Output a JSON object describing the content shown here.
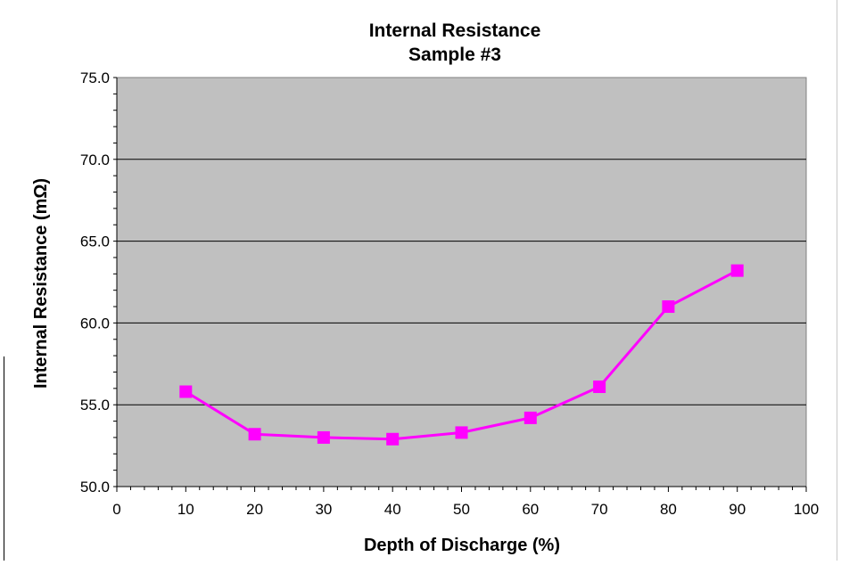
{
  "chart_data": {
    "type": "line",
    "title": "Internal Resistance",
    "subtitle": "Sample #3",
    "xlabel": "Depth of Discharge (%)",
    "ylabel": "Internal Resistance (mΩ)",
    "xlim": [
      0,
      100
    ],
    "ylim": [
      50,
      75
    ],
    "x_ticks": [
      "0",
      "10",
      "20",
      "30",
      "40",
      "50",
      "60",
      "70",
      "80",
      "90",
      "100"
    ],
    "y_ticks": [
      "50.0",
      "55.0",
      "60.0",
      "65.0",
      "70.0",
      "75.0"
    ],
    "grid": "horizontal",
    "legend": "none",
    "series": [
      {
        "x": [
          10,
          20,
          30,
          40,
          50,
          60,
          70,
          80,
          90
        ],
        "y": [
          55.8,
          53.2,
          53.0,
          52.9,
          53.3,
          54.2,
          56.1,
          61.0,
          63.2
        ],
        "color": "#ff00ff",
        "marker": "square"
      }
    ],
    "colors": {
      "plot_background": "#c0c0c0",
      "gridline": "#000000",
      "line": "#ff00ff"
    }
  }
}
